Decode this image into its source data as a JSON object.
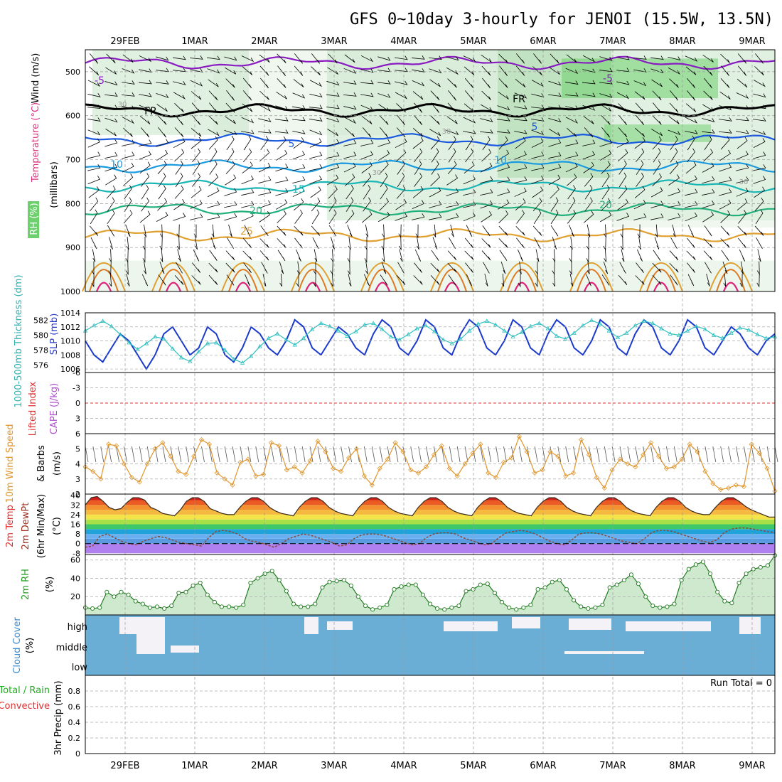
{
  "title": "GFS 0~10day 3-hourly for JENOI (15.5W, 13.5N)",
  "dates": [
    "29FEB",
    "1MAR",
    "2MAR",
    "3MAR",
    "4MAR",
    "5MAR",
    "6MAR",
    "7MAR",
    "8MAR",
    "9MAR"
  ],
  "chart_data": [
    {
      "type": "heatmap",
      "panel": "upper-air",
      "ylabels": {
        "wind": "Wind (m/s)",
        "temp": "Temperature (°C)",
        "units": "(millibars)",
        "rh": "RH (%)"
      },
      "y_ticks": [
        "500",
        "600",
        "700",
        "800",
        "900",
        "1000"
      ],
      "ylim": [
        1000,
        450
      ],
      "temperature_contour_labels": [
        "-5",
        "FR",
        "5",
        "10",
        "15",
        "20",
        "25"
      ],
      "temperature_levels_mb": [
        {
          "label": "-5",
          "mb": 480
        },
        {
          "label": "FR",
          "mb": 588
        },
        {
          "label": "5",
          "mb": 655
        },
        {
          "label": "10",
          "mb": 715
        },
        {
          "label": "15",
          "mb": 760
        },
        {
          "label": "20",
          "mb": 813
        },
        {
          "label": "25",
          "mb": 872
        }
      ],
      "rh_contour_labels": [
        "30"
      ],
      "colors": {
        "minus5": "#8a1bc2",
        "fr": "#000000",
        "t5": "#1a5ae0",
        "t10": "#1a9ae0",
        "t15": "#1ab5b5",
        "t20": "#22b07c",
        "t25": "#e0a030",
        "warm": "#e07820",
        "hot": "#e0207a",
        "rh_fill": "#6cd06c"
      }
    },
    {
      "type": "line",
      "panel": "thickness-slp",
      "ylabels": {
        "thickness": "1000-500mb Thickness (dm)",
        "slp": "SLP (mb)"
      },
      "thickness_ticks": [
        "582",
        "580",
        "578",
        "576"
      ],
      "slp_ticks": [
        "1014",
        "1012",
        "1010",
        "1008",
        "1006"
      ],
      "ylim_slp": [
        1005.5,
        1014
      ],
      "series": [
        {
          "name": "SLP (mb)",
          "color": "#1a3acc",
          "values": [
            1010,
            1008,
            1007,
            1009,
            1011,
            1010,
            1008,
            1006,
            1008,
            1011,
            1012,
            1010,
            1008,
            1009,
            1012,
            1011,
            1008,
            1007,
            1009,
            1012,
            1011,
            1009,
            1008,
            1010,
            1013,
            1012,
            1009,
            1008,
            1010,
            1012,
            1011,
            1009,
            1008,
            1011,
            1013,
            1012,
            1009,
            1008,
            1010,
            1013,
            1012,
            1009,
            1008,
            1011,
            1013,
            1012,
            1009,
            1008,
            1010,
            1013,
            1012,
            1009,
            1008,
            1011,
            1013,
            1012,
            1009,
            1008,
            1010,
            1013,
            1012,
            1009,
            1008,
            1011,
            1013,
            1012,
            1009,
            1008,
            1010,
            1013,
            1012,
            1009,
            1008,
            1010,
            1012,
            1011,
            1009,
            1008,
            1010,
            1011
          ]
        },
        {
          "name": "Thickness (dm)",
          "color": "#2fc0c0",
          "values": [
            580.6,
            581.3,
            581.9,
            581.2,
            580.1,
            579.0,
            578.1,
            578.9,
            579.8,
            579.5,
            578.2,
            577.0,
            576.5,
            577.8,
            578.9,
            579.0,
            578.0,
            576.8,
            576.3,
            577.2,
            578.5,
            579.6,
            580.2,
            579.4,
            578.7,
            579.6,
            580.8,
            581.6,
            581.2,
            580.6,
            579.9,
            580.5,
            581.4,
            581.6,
            580.8,
            579.8,
            579.4,
            580.1,
            580.9,
            581.3,
            580.5,
            579.4,
            578.9,
            579.5,
            580.6,
            581.5,
            581.9,
            581.4,
            580.6,
            579.8,
            580.4,
            581.2,
            581.6,
            580.9,
            579.9,
            579.5,
            580.3,
            581.3,
            582.0,
            581.5,
            580.6,
            579.7,
            580.3,
            581.3,
            581.9,
            581.6,
            580.9,
            580.2,
            580.0,
            580.6,
            581.2,
            580.8,
            580.0,
            579.6,
            580.3,
            581.0,
            580.7,
            580.1,
            579.6,
            579.8
          ]
        }
      ]
    },
    {
      "type": "line",
      "panel": "lifted-index-cape",
      "ylabels": {
        "li": "Lifted Index",
        "cape": "CAPE (J/kg)"
      },
      "y_ticks": [
        "-6",
        "-3",
        "0",
        "3",
        "6"
      ],
      "ylim": [
        6,
        -6
      ],
      "series": [
        {
          "name": "Lifted Index",
          "color": "#e03030",
          "values": [
            0
          ]
        }
      ]
    },
    {
      "type": "line",
      "panel": "wind10m",
      "ylabels": {
        "speed": "10m Wind Speed",
        "units": "(m/s)",
        "barbs": "& Barbs"
      },
      "y_ticks": [
        "5",
        "4",
        "3",
        "2"
      ],
      "ylim": [
        2,
        6
      ],
      "series": [
        {
          "name": "10m Wind Speed",
          "color": "#e0952a",
          "values": [
            3.8,
            3.5,
            3.0,
            5.3,
            5.2,
            4.0,
            3.1,
            2.8,
            4.0,
            5.0,
            5.4,
            4.5,
            3.5,
            3.3,
            4.5,
            5.6,
            5.3,
            3.4,
            3.0,
            2.6,
            4.1,
            4.3,
            3.2,
            3.3,
            5.4,
            5.2,
            3.6,
            3.8,
            3.4,
            4.2,
            5.5,
            4.8,
            3.7,
            3.5,
            4.4,
            5.0,
            3.2,
            2.6,
            3.7,
            4.3,
            5.4,
            4.8,
            3.6,
            3.4,
            3.8,
            4.6,
            5.2,
            3.7,
            3.2,
            4.0,
            4.7,
            5.3,
            3.4,
            3.1,
            4.1,
            4.4,
            5.8,
            4.8,
            3.4,
            3.6,
            4.8,
            4.5,
            3.2,
            3.4,
            5.6,
            4.6,
            3.1,
            2.4,
            3.6,
            4.3,
            4.0,
            3.8,
            4.6,
            5.4,
            4.5,
            3.7,
            3.8,
            4.3,
            5.3,
            4.8,
            3.5,
            2.7,
            2.3,
            2.4,
            2.6,
            2.5,
            5.3,
            4.7,
            3.7,
            2.2
          ]
        }
      ]
    },
    {
      "type": "area",
      "panel": "temperature",
      "ylabels": {
        "temp": "2m Temp",
        "dewpt": "2m DewPt",
        "minmax": "(6hr Min/Max)",
        "units": "(°C)"
      },
      "y_ticks": [
        "40",
        "32",
        "24",
        "16",
        "8",
        "0",
        "-8"
      ],
      "ylim": [
        -9,
        41
      ],
      "band_colors": [
        "#b07ff0",
        "#5a9be0",
        "#6ab0f0",
        "#1fa3d8",
        "#3ec86a",
        "#a8e048",
        "#f4e44a",
        "#f5b940",
        "#f39030",
        "#ea5a22",
        "#cf1f1f"
      ],
      "series": [
        {
          "name": "2m Temp",
          "color": "#3a2a1a",
          "values": [
            32,
            38,
            39,
            35,
            30,
            28,
            29,
            34,
            38,
            38,
            36,
            30,
            28,
            25,
            24,
            23,
            28,
            35,
            38,
            38,
            35,
            29,
            27,
            25,
            24,
            24,
            30,
            35,
            38,
            38,
            35,
            30,
            27,
            25,
            24,
            23,
            30,
            35,
            38,
            38,
            35,
            30,
            27,
            25,
            24,
            23,
            30,
            35,
            38,
            38,
            35,
            30,
            27,
            25,
            24,
            23,
            30,
            35,
            38,
            38,
            35,
            30,
            27,
            25,
            24,
            23,
            30,
            35,
            38,
            38,
            35,
            30,
            27,
            25,
            24,
            23,
            30,
            35,
            38,
            38,
            35,
            30,
            27,
            25,
            24,
            23,
            30,
            35,
            38,
            38,
            35,
            30,
            27,
            25,
            24,
            23,
            30,
            35,
            38,
            38,
            35,
            30,
            27,
            25,
            24,
            24,
            30,
            35,
            38,
            38,
            35,
            31,
            28,
            26,
            24,
            22,
            22
          ]
        },
        {
          "name": "2m DewPt",
          "color": "#8a4a3a",
          "values": [
            -3,
            -2,
            6,
            8,
            5,
            2,
            0,
            -1,
            2,
            4,
            6,
            5,
            3,
            1,
            0,
            -1,
            -2,
            5,
            10,
            11,
            10,
            8,
            4,
            2,
            1,
            -1,
            -3,
            0,
            4,
            6,
            8,
            7,
            5,
            3,
            1,
            -2,
            -1,
            4,
            7,
            8,
            8,
            7,
            5,
            3,
            1,
            -1,
            0,
            5,
            8,
            9,
            9,
            8,
            5,
            3,
            1,
            -1,
            0,
            5,
            9,
            10,
            11,
            10,
            8,
            5,
            2,
            0,
            -1,
            3,
            8,
            9,
            9,
            8,
            6,
            4,
            2,
            1,
            0,
            4,
            9,
            11,
            11,
            10,
            8,
            6,
            4,
            2,
            1,
            3,
            9,
            12,
            13,
            13,
            12,
            11,
            10,
            9
          ]
        }
      ]
    },
    {
      "type": "area",
      "panel": "relative-humidity",
      "ylabels": {
        "rh": "2m RH",
        "units": "(%)"
      },
      "y_ticks": [
        "60",
        "40",
        "20"
      ],
      "ylim": [
        0,
        66
      ],
      "series": [
        {
          "name": "2m RH",
          "color": "#207a20",
          "values": [
            8,
            7,
            8,
            25,
            20,
            25,
            22,
            15,
            12,
            8,
            9,
            7,
            10,
            24,
            25,
            32,
            35,
            22,
            14,
            9,
            9,
            8,
            11,
            35,
            40,
            45,
            48,
            38,
            26,
            12,
            9,
            9,
            12,
            30,
            36,
            37,
            38,
            32,
            20,
            10,
            6,
            8,
            11,
            28,
            31,
            33,
            33,
            22,
            12,
            7,
            6,
            8,
            10,
            26,
            28,
            33,
            34,
            24,
            14,
            8,
            6,
            8,
            11,
            28,
            30,
            36,
            38,
            28,
            16,
            9,
            7,
            8,
            11,
            30,
            33,
            38,
            44,
            34,
            20,
            10,
            8,
            9,
            12,
            38,
            50,
            55,
            58,
            45,
            25,
            15,
            13,
            35,
            45,
            50,
            52,
            54,
            65
          ]
        }
      ]
    },
    {
      "type": "heatmap",
      "panel": "cloud-cover",
      "ylabels": {
        "cloud": "Cloud Cover",
        "units": "(%)"
      },
      "y_ticks": [
        "high",
        "middle",
        "low"
      ],
      "colors": {
        "clear": "#6aaed6",
        "cloud": "#f4f2f6"
      }
    },
    {
      "type": "bar",
      "panel": "precipitation",
      "ylabels": {
        "main": "3hr Precip (mm)",
        "rain": "Total / Rain",
        "conv": "Convective"
      },
      "y_ticks": [
        "0.8",
        "0.6",
        "0.4",
        "0.2",
        "0"
      ],
      "ylim": [
        0,
        1.0
      ],
      "run_total": "Run Total = 0",
      "values": []
    }
  ]
}
